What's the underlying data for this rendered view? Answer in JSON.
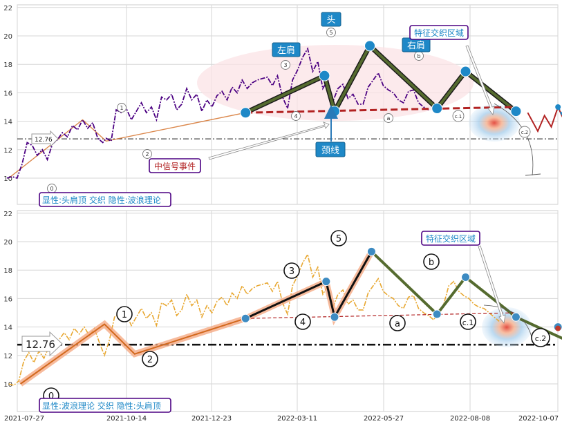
{
  "chart_data": [
    {
      "type": "line",
      "panel": "top",
      "ylim": [
        9,
        22.5
      ],
      "yticks": [
        10,
        12,
        14,
        16,
        18,
        20,
        22
      ],
      "grid": true,
      "price_color": "#4b0082",
      "wave_color": "#556b2f",
      "neck_color": "#b22222",
      "price_series": [
        [
          -28,
          10.0
        ],
        [
          -25,
          10.1
        ],
        [
          -22,
          10.0
        ],
        [
          -19,
          11.0
        ],
        [
          -16,
          12.5
        ],
        [
          -13,
          12.3
        ],
        [
          -10,
          11.6
        ],
        [
          -7,
          12.0
        ],
        [
          -4,
          11.3
        ],
        [
          -1,
          12.4
        ],
        [
          2,
          12.7
        ],
        [
          5,
          13.2
        ],
        [
          8,
          12.9
        ],
        [
          11,
          13.7
        ],
        [
          14,
          13.4
        ],
        [
          17,
          14.1
        ],
        [
          20,
          13.5
        ],
        [
          23,
          13.9
        ],
        [
          26,
          12.8
        ],
        [
          29,
          12.5
        ],
        [
          31,
          12.8
        ],
        [
          34,
          12.6
        ],
        [
          37,
          14.8
        ],
        [
          40,
          14.6
        ],
        [
          43,
          14.9
        ],
        [
          46,
          14.1
        ],
        [
          49,
          14.7
        ],
        [
          52,
          15.3
        ],
        [
          55,
          14.6
        ],
        [
          58,
          15.0
        ],
        [
          61,
          14.1
        ],
        [
          64,
          15.7
        ],
        [
          67,
          15.5
        ],
        [
          70,
          15.9
        ],
        [
          73,
          14.8
        ],
        [
          76,
          15.2
        ],
        [
          79,
          16.3
        ],
        [
          82,
          15.5
        ],
        [
          85,
          15.9
        ],
        [
          88,
          14.7
        ],
        [
          91,
          15.5
        ],
        [
          94,
          15.0
        ],
        [
          97,
          15.8
        ],
        [
          100,
          16.1
        ],
        [
          103,
          15.5
        ],
        [
          106,
          16.4
        ],
        [
          109,
          16.0
        ],
        [
          112,
          16.9
        ],
        [
          115,
          16.3
        ],
        [
          118,
          16.7
        ],
        [
          121,
          16.9
        ],
        [
          124,
          17.0
        ],
        [
          127,
          17.1
        ],
        [
          130,
          16.5
        ],
        [
          133,
          17.2
        ],
        [
          136,
          15.7
        ],
        [
          139,
          14.9
        ],
        [
          142,
          16.9
        ],
        [
          145,
          17.6
        ],
        [
          148,
          18.5
        ],
        [
          151,
          19.1
        ],
        [
          154,
          17.5
        ],
        [
          157,
          18.2
        ],
        [
          160,
          16.3
        ],
        [
          163,
          16.9
        ],
        [
          166,
          15.4
        ],
        [
          169,
          16.3
        ],
        [
          172,
          16.6
        ],
        [
          175,
          15.6
        ],
        [
          178,
          15.9
        ],
        [
          181,
          15.2
        ],
        [
          184,
          15.2
        ],
        [
          187,
          16.4
        ],
        [
          190,
          16.9
        ],
        [
          193,
          17.4
        ],
        [
          196,
          16.5
        ],
        [
          199,
          16.2
        ],
        [
          202,
          16.0
        ],
        [
          205,
          15.5
        ],
        [
          208,
          15.3
        ],
        [
          211,
          16.1
        ],
        [
          214,
          16.2
        ],
        [
          217,
          15.3
        ],
        [
          220,
          15.0
        ],
        [
          223,
          14.8
        ]
      ],
      "wave_points": [
        [
          114,
          14.6
        ],
        [
          161,
          17.2
        ],
        [
          167,
          14.7
        ],
        [
          188,
          19.3
        ],
        [
          228,
          14.9
        ],
        [
          245,
          17.5
        ],
        [
          275,
          14.7
        ]
      ],
      "wave_labels": [
        "0",
        "1",
        "2",
        "3",
        "4",
        "5",
        "a",
        "b",
        "c.1",
        "c.2"
      ],
      "neckline": {
        "x": [
          114,
          275
        ],
        "y": [
          14.6,
          15.0
        ]
      },
      "projection_points": [
        [
          282,
          14.6
        ],
        [
          288,
          13.3
        ],
        [
          292,
          14.4
        ],
        [
          296,
          13.6
        ],
        [
          300,
          15.0
        ],
        [
          305,
          13.7
        ]
      ],
      "projection_line": [
        [
          300,
          15.0
        ],
        [
          322,
          10.2
        ]
      ],
      "head_shoulders_labels": {
        "left_shoulder": "左肩",
        "head": "头",
        "right_shoulder": "右肩",
        "neckline": "颈线"
      },
      "annotations": {
        "mid_signal": "中信号事件",
        "feature_zone": "特征交织区域"
      },
      "hline": 12.76,
      "hline_label": "12.76",
      "caption": "显性:头肩顶 交织 隐性:波浪理论"
    },
    {
      "type": "line",
      "panel": "bottom",
      "ylim": [
        8.5,
        22.5
      ],
      "yticks": [
        10,
        12,
        14,
        16,
        18,
        20,
        22
      ],
      "grid": true,
      "price_color": "#e8a832",
      "wave_color": "#556b2f",
      "neck_color": "#b22222",
      "xticks": [
        "2021-07-27",
        "2021-10-14",
        "2021-12-23",
        "2022-03-11",
        "2022-05-27",
        "2022-08-08",
        "2022-10-07"
      ],
      "wave_points": [
        [
          -20,
          10.0
        ],
        [
          30,
          14.2
        ],
        [
          48,
          12.1
        ],
        [
          114,
          14.6
        ],
        [
          162,
          17.2
        ],
        [
          167,
          14.7
        ],
        [
          189,
          19.3
        ],
        [
          228,
          14.9
        ],
        [
          245,
          17.5
        ],
        [
          275,
          14.7
        ],
        [
          310,
          12.8
        ]
      ],
      "wave_labels": [
        "0",
        "1",
        "2",
        "3",
        "4",
        "5",
        "a",
        "b",
        "c.1",
        "c.2"
      ],
      "neckline": {
        "x": [
          114,
          275
        ],
        "y": [
          14.6,
          15.0
        ]
      },
      "annotations": {
        "feature_zone": "特征交织区域"
      },
      "hline": 12.76,
      "hline_label": "12.76",
      "caption": "显性:波浪理论 交织 隐性:头肩顶"
    }
  ]
}
